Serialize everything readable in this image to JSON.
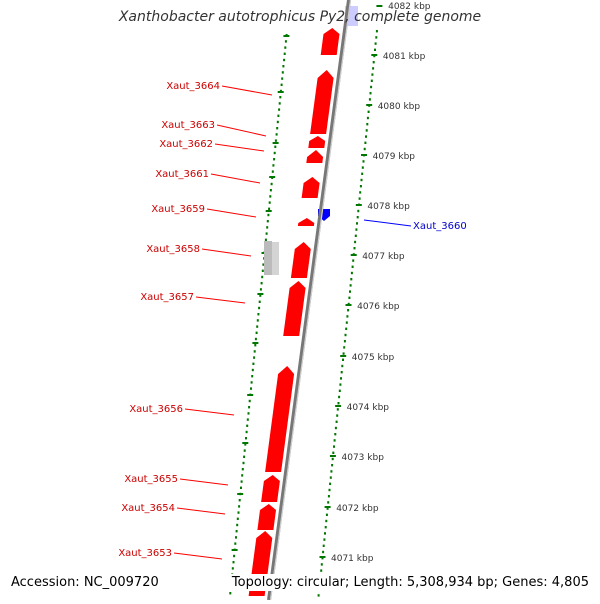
{
  "title": "Xanthobacter autotrophicus Py2, complete genome",
  "accession_text": "Accession: NC_009720",
  "summary_text": "Topology: circular; Length: 5,308,934 bp; Genes: 4,805",
  "colors": {
    "forward_gene": "#ff0000",
    "reverse_gene": "#0000ff",
    "other_feature": "#c0c0c0",
    "backbone": "#888888",
    "scale_ticks": "#007700",
    "highlight": "#ccccff"
  },
  "scale_labels": [
    "4082 kbp",
    "4081 kbp",
    "4080 kbp",
    "4079 kbp",
    "4078 kbp",
    "4077 kbp",
    "4076 kbp",
    "4075 kbp",
    "4074 kbp",
    "4073 kbp",
    "4072 kbp",
    "4071 kbp"
  ],
  "gene_labels": [
    {
      "name": "Xaut_3664",
      "strand": "forward"
    },
    {
      "name": "Xaut_3663",
      "strand": "forward"
    },
    {
      "name": "Xaut_3662",
      "strand": "forward"
    },
    {
      "name": "Xaut_3661",
      "strand": "forward"
    },
    {
      "name": "Xaut_3659",
      "strand": "forward"
    },
    {
      "name": "Xaut_3658",
      "strand": "forward"
    },
    {
      "name": "Xaut_3657",
      "strand": "forward"
    },
    {
      "name": "Xaut_3656",
      "strand": "forward"
    },
    {
      "name": "Xaut_3655",
      "strand": "forward"
    },
    {
      "name": "Xaut_3654",
      "strand": "forward"
    },
    {
      "name": "Xaut_3653",
      "strand": "forward"
    },
    {
      "name": "Xaut_3660",
      "strand": "reverse"
    }
  ]
}
